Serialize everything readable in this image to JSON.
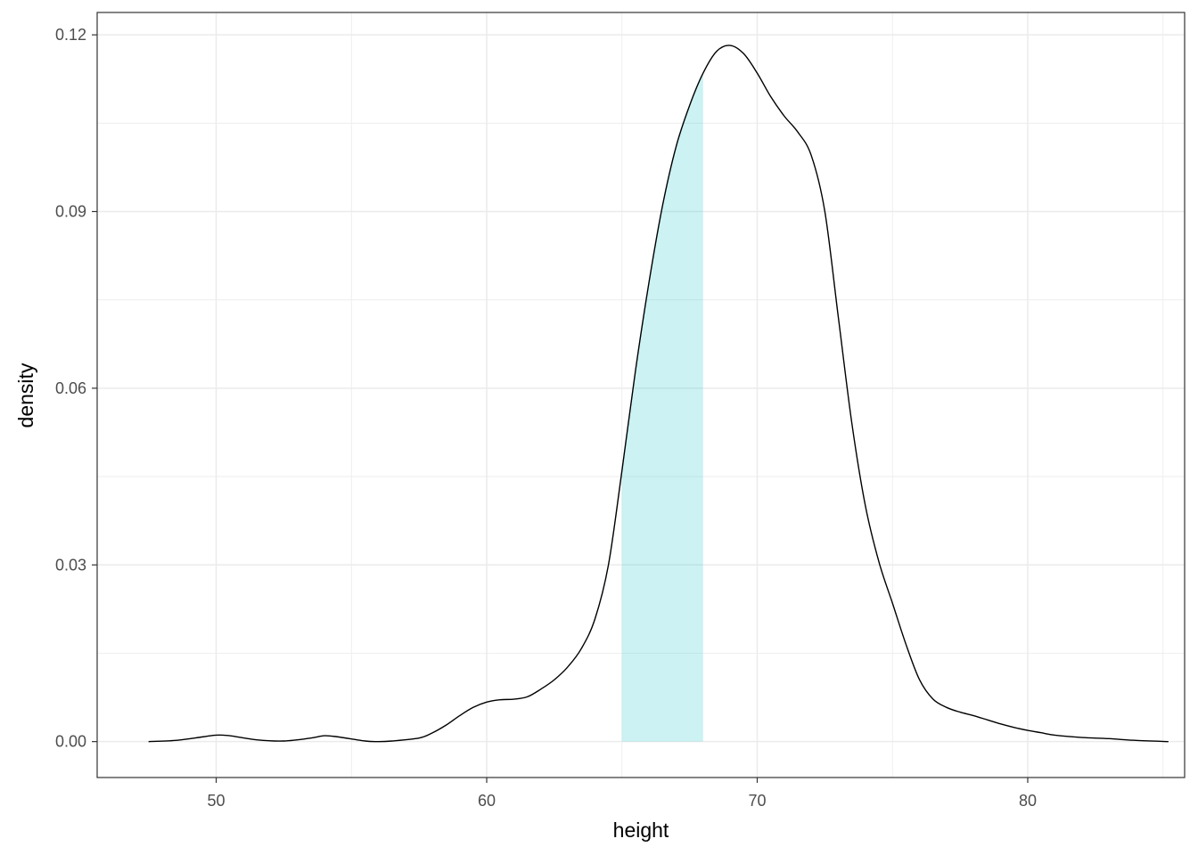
{
  "chart_data": {
    "type": "area",
    "title": "",
    "xlabel": "height",
    "ylabel": "density",
    "xlim": [
      45.6,
      85.8
    ],
    "ylim": [
      -0.0061,
      0.1238
    ],
    "x_ticks": [
      50,
      60,
      70,
      80
    ],
    "x_tick_labels": [
      "50",
      "60",
      "70",
      "80"
    ],
    "y_ticks": [
      0.0,
      0.03,
      0.06,
      0.09,
      0.12
    ],
    "y_tick_labels": [
      "0.00",
      "0.03",
      "0.06",
      "0.09",
      "0.12"
    ],
    "grid": true,
    "theme": "bw",
    "density_curve": {
      "line_color": "#000000",
      "x": [
        47.5,
        48.5,
        49.5,
        50.0,
        50.5,
        51.5,
        52.5,
        53.5,
        54.0,
        54.5,
        55.5,
        56.0,
        56.5,
        57.5,
        58.0,
        58.5,
        59.0,
        59.5,
        60.0,
        60.5,
        61.0,
        61.5,
        62.0,
        62.5,
        63.0,
        63.5,
        64.0,
        64.5,
        65.0,
        65.5,
        66.0,
        66.5,
        67.0,
        67.5,
        68.0,
        68.5,
        69.0,
        69.5,
        70.0,
        70.5,
        71.0,
        71.5,
        72.0,
        72.5,
        73.0,
        73.5,
        74.0,
        74.5,
        75.0,
        75.5,
        76.0,
        76.5,
        77.0,
        77.5,
        78.0,
        78.5,
        79.0,
        79.5,
        80.0,
        80.5,
        81.0,
        82.0,
        83.0,
        84.0,
        85.2
      ],
      "y": [
        0.0,
        0.0002,
        0.0008,
        0.0011,
        0.001,
        0.0003,
        0.0001,
        0.0006,
        0.001,
        0.0008,
        0.0001,
        0.0,
        0.0001,
        0.0006,
        0.0015,
        0.0028,
        0.0044,
        0.0058,
        0.0067,
        0.0071,
        0.0072,
        0.0076,
        0.0089,
        0.0105,
        0.0127,
        0.0158,
        0.0208,
        0.03,
        0.046,
        0.063,
        0.078,
        0.091,
        0.101,
        0.108,
        0.1135,
        0.1172,
        0.1182,
        0.1168,
        0.1135,
        0.1095,
        0.1062,
        0.1035,
        0.0995,
        0.09,
        0.072,
        0.054,
        0.04,
        0.0305,
        0.0235,
        0.0165,
        0.0105,
        0.0072,
        0.0058,
        0.005,
        0.0044,
        0.0037,
        0.003,
        0.0024,
        0.0019,
        0.0015,
        0.0011,
        0.0007,
        0.0005,
        0.0002,
        0.0
      ]
    },
    "shaded_region": {
      "x_range": [
        65,
        68
      ],
      "fill_color": "#00bfc4",
      "opacity": 0.2
    }
  }
}
